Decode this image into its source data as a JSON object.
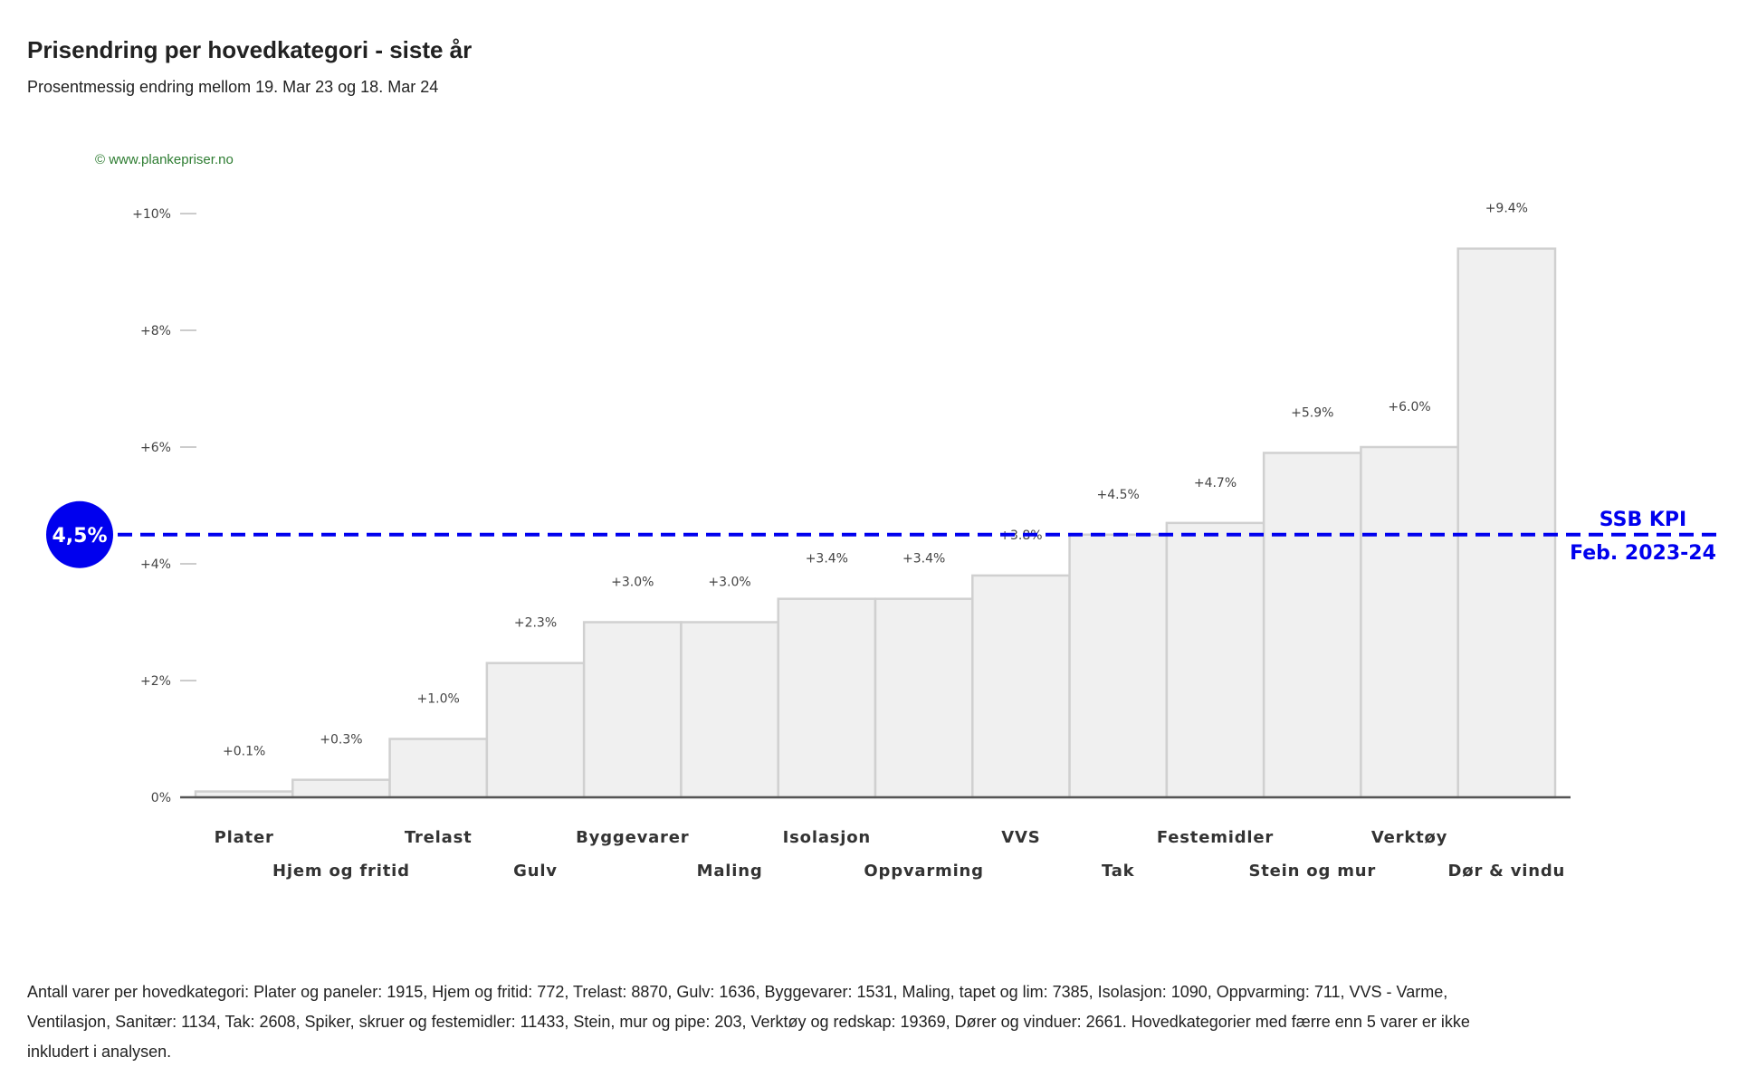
{
  "title": "Prisendring per hovedkategori - siste år",
  "subtitle": "Prosentmessig endring mellom 19. Mar 23 og 18. Mar 24",
  "copyright": "© www.plankepriser.no",
  "kpi": {
    "value": 4.5,
    "badge_label": "4,5%",
    "line_label_1": "SSB KPI",
    "line_label_2": "Feb. 2023-24",
    "color": "#0000ee"
  },
  "colors": {
    "bar_fill": "#f0f0f0",
    "bar_stroke": "#d0d0d0",
    "axis": "#555555",
    "copyright": "#2e7d32"
  },
  "chart_data": {
    "type": "bar",
    "categories": [
      "Plater",
      "Hjem og fritid",
      "Trelast",
      "Gulv",
      "Byggevarer",
      "Maling",
      "Isolasjon",
      "Oppvarming",
      "VVS",
      "Tak",
      "Festemidler",
      "Stein og mur",
      "Verktøy",
      "Dør & vindu"
    ],
    "values": [
      0.1,
      0.3,
      1.0,
      2.3,
      3.0,
      3.0,
      3.4,
      3.4,
      3.8,
      4.5,
      4.7,
      5.9,
      6.0,
      9.4
    ],
    "data_labels": [
      "+0.1%",
      "+0.3%",
      "+1.0%",
      "+2.3%",
      "+3.0%",
      "+3.0%",
      "+3.4%",
      "+3.4%",
      "+3.8%",
      "+4.5%",
      "+4.7%",
      "+5.9%",
      "+6.0%",
      "+9.4%"
    ],
    "y_ticks": [
      0,
      2,
      4,
      6,
      8,
      10
    ],
    "y_tick_labels": [
      "0%",
      "+2%",
      "+4%",
      "+6%",
      "+8%",
      "+10%"
    ],
    "ylim": [
      0,
      10
    ],
    "grid": false,
    "reference_line": {
      "value": 4.5,
      "style": "dashed"
    }
  },
  "footnote": "Antall varer per hovedkategori: Plater og paneler: 1915, Hjem og fritid: 772, Trelast: 8870, Gulv: 1636, Byggevarer: 1531, Maling, tapet og lim: 7385, Isolasjon: 1090, Oppvarming: 711, VVS - Varme, Ventilasjon, Sanitær: 1134, Tak: 2608, Spiker, skruer og festemidler: 11433, Stein, mur og pipe: 203, Verktøy og redskap: 19369, Dører og vinduer: 2661. Hovedkategorier med færre enn 5 varer er ikke inkludert i analysen."
}
